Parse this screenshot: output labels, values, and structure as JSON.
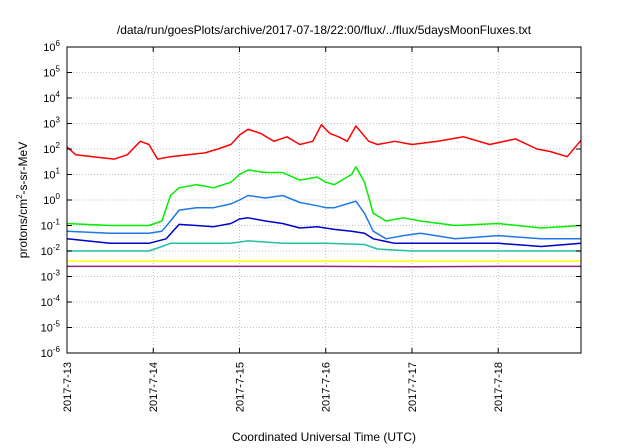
{
  "chart_data": {
    "type": "line",
    "title": "/data/run/goesPlots/archive/2017-07-18/22:00/flux/../flux/5daysMoonFluxes.txt",
    "xlabel": "Coordinated Universal Time (UTC)",
    "ylabel": {
      "base": "protons/cm",
      "sup": "2",
      "rest": "-s-sr-MeV"
    },
    "yscale": "log",
    "ylim_exp": [
      -6,
      6
    ],
    "y_ticks": [
      {
        "base": "10",
        "exp": "-6"
      },
      {
        "base": "10",
        "exp": "-5"
      },
      {
        "base": "10",
        "exp": "-4"
      },
      {
        "base": "10",
        "exp": "-3"
      },
      {
        "base": "10",
        "exp": "-2"
      },
      {
        "base": "10",
        "exp": "-1"
      },
      {
        "base": "10",
        "exp": "0"
      },
      {
        "base": "10",
        "exp": "1"
      },
      {
        "base": "10",
        "exp": "2"
      },
      {
        "base": "10",
        "exp": "3"
      },
      {
        "base": "10",
        "exp": "4"
      },
      {
        "base": "10",
        "exp": "5"
      },
      {
        "base": "10",
        "exp": "6"
      }
    ],
    "xlim_days": [
      0,
      5.96
    ],
    "x_ticks": [
      {
        "label": "2017-7-13",
        "day": 0
      },
      {
        "label": "2017-7-14",
        "day": 1
      },
      {
        "label": "2017-7-15",
        "day": 2
      },
      {
        "label": "2017-7-16",
        "day": 3
      },
      {
        "label": "2017-7-17",
        "day": 4
      },
      {
        "label": "2017-7-18",
        "day": 5
      }
    ],
    "grid": true,
    "series": [
      {
        "color": "#ff0000",
        "x": [
          0,
          0.1,
          0.3,
          0.55,
          0.7,
          0.85,
          0.95,
          1.05,
          1.2,
          1.4,
          1.6,
          1.75,
          1.9,
          2.0,
          2.1,
          2.25,
          2.4,
          2.55,
          2.7,
          2.85,
          2.95,
          3.05,
          3.15,
          3.25,
          3.35,
          3.5,
          3.6,
          3.8,
          4.0,
          4.3,
          4.6,
          4.9,
          5.2,
          5.45,
          5.6,
          5.8,
          5.96
        ],
        "y": [
          120,
          60,
          50,
          40,
          60,
          200,
          150,
          40,
          50,
          60,
          70,
          100,
          150,
          350,
          600,
          400,
          200,
          300,
          150,
          200,
          900,
          400,
          300,
          200,
          800,
          200,
          150,
          200,
          150,
          200,
          300,
          150,
          250,
          100,
          80,
          50,
          220
        ]
      },
      {
        "color": "#00ee00",
        "x": [
          0,
          0.5,
          0.95,
          1.1,
          1.2,
          1.3,
          1.5,
          1.7,
          1.9,
          2.0,
          2.1,
          2.3,
          2.5,
          2.7,
          2.9,
          3.0,
          3.1,
          3.3,
          3.35,
          3.45,
          3.55,
          3.7,
          3.9,
          4.1,
          4.5,
          5.0,
          5.5,
          5.96
        ],
        "y": [
          0.12,
          0.1,
          0.1,
          0.15,
          1.5,
          3,
          4,
          3,
          5,
          10,
          15,
          12,
          12,
          6,
          8,
          5,
          4,
          10,
          20,
          5,
          0.3,
          0.15,
          0.2,
          0.15,
          0.1,
          0.12,
          0.08,
          0.1
        ]
      },
      {
        "color": "#1e78e6",
        "x": [
          0,
          0.5,
          0.95,
          1.1,
          1.2,
          1.3,
          1.5,
          1.7,
          1.9,
          2.0,
          2.1,
          2.3,
          2.5,
          2.7,
          2.9,
          3.0,
          3.1,
          3.3,
          3.35,
          3.45,
          3.55,
          3.7,
          3.9,
          4.1,
          4.5,
          5.0,
          5.5,
          5.96
        ],
        "y": [
          0.06,
          0.05,
          0.05,
          0.06,
          0.15,
          0.4,
          0.5,
          0.5,
          0.7,
          1.0,
          1.5,
          1.2,
          1.5,
          0.8,
          0.6,
          0.5,
          0.5,
          0.8,
          0.9,
          0.3,
          0.06,
          0.03,
          0.04,
          0.05,
          0.03,
          0.04,
          0.03,
          0.03
        ]
      },
      {
        "color": "#0000cc",
        "x": [
          0,
          0.5,
          0.95,
          1.15,
          1.3,
          1.5,
          1.7,
          1.9,
          2.0,
          2.1,
          2.3,
          2.5,
          2.7,
          2.9,
          3.1,
          3.3,
          3.45,
          3.55,
          3.8,
          4.3,
          5.0,
          5.5,
          5.96
        ],
        "y": [
          0.03,
          0.02,
          0.02,
          0.03,
          0.11,
          0.1,
          0.09,
          0.12,
          0.18,
          0.2,
          0.15,
          0.12,
          0.08,
          0.09,
          0.07,
          0.06,
          0.05,
          0.03,
          0.02,
          0.02,
          0.02,
          0.015,
          0.02
        ]
      },
      {
        "color": "#20c0a0",
        "x": [
          0,
          0.5,
          0.95,
          1.1,
          1.2,
          1.5,
          1.9,
          2.1,
          2.5,
          3.0,
          3.45,
          3.6,
          4.0,
          4.5,
          5.0,
          5.5,
          5.96
        ],
        "y": [
          0.01,
          0.01,
          0.01,
          0.015,
          0.02,
          0.02,
          0.02,
          0.025,
          0.02,
          0.02,
          0.018,
          0.012,
          0.01,
          0.01,
          0.01,
          0.01,
          0.01
        ]
      },
      {
        "color": "#ffff00",
        "x": [
          0,
          1,
          2,
          3,
          4,
          5,
          5.96
        ],
        "y": [
          0.004,
          0.004,
          0.004,
          0.004,
          0.004,
          0.004,
          0.004
        ]
      },
      {
        "color": "#8b2a7a",
        "x": [
          0,
          1,
          2,
          3,
          4,
          5,
          5.96
        ],
        "y": [
          0.0025,
          0.0025,
          0.0025,
          0.0025,
          0.0024,
          0.0025,
          0.0025
        ]
      }
    ]
  }
}
